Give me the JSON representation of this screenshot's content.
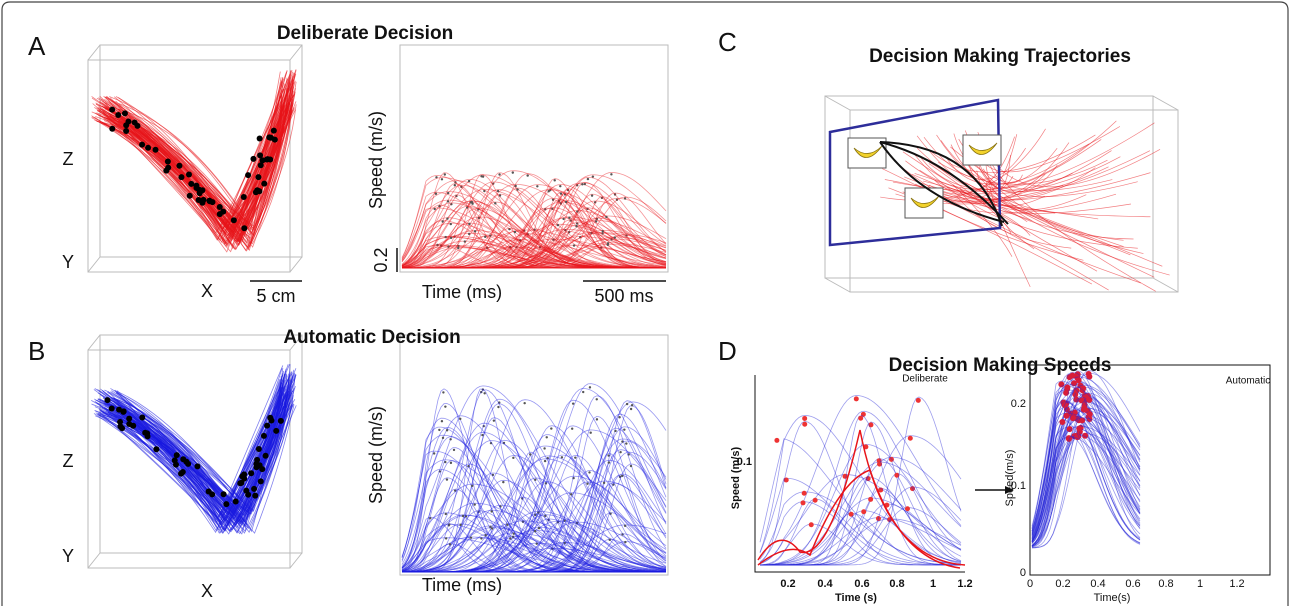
{
  "panels": {
    "A": {
      "letter": "A",
      "title": "Deliberate Decision",
      "space": {
        "z_label": "Z",
        "y_label": "Y",
        "x_label": "X",
        "scale_label": "5 cm"
      },
      "speed": {
        "y_label": "Speed (m/s)",
        "y_scale_label": "0.2",
        "x_label": "Time (ms)",
        "x_scale_label": "500 ms"
      }
    },
    "B": {
      "letter": "B",
      "title": "Automatic Decision",
      "space": {
        "z_label": "Z",
        "y_label": "Y",
        "x_label": "X"
      },
      "speed": {
        "y_label": "Speed (m/s)",
        "x_label": "Time (ms)"
      }
    },
    "C": {
      "letter": "C",
      "title": "Decision Making Trajectories"
    },
    "D": {
      "letter": "D",
      "title": "Decision Making Speeds",
      "deliberate": {
        "label": "Deliberate",
        "y_label": "Speed (m/s)",
        "x_label": "Time (s)",
        "yticks": [
          0.1
        ],
        "xticks": [
          0.2,
          0.4,
          0.6,
          0.8,
          1,
          1.2
        ]
      },
      "automatic": {
        "label": "Automatic",
        "y_label": "Speed(m/s)",
        "x_label": "Time(s)",
        "yticks": [
          0,
          0.1,
          0.2
        ],
        "xticks": [
          0,
          0.2,
          0.4,
          0.6,
          0.8,
          1,
          1.2
        ]
      }
    }
  }
}
